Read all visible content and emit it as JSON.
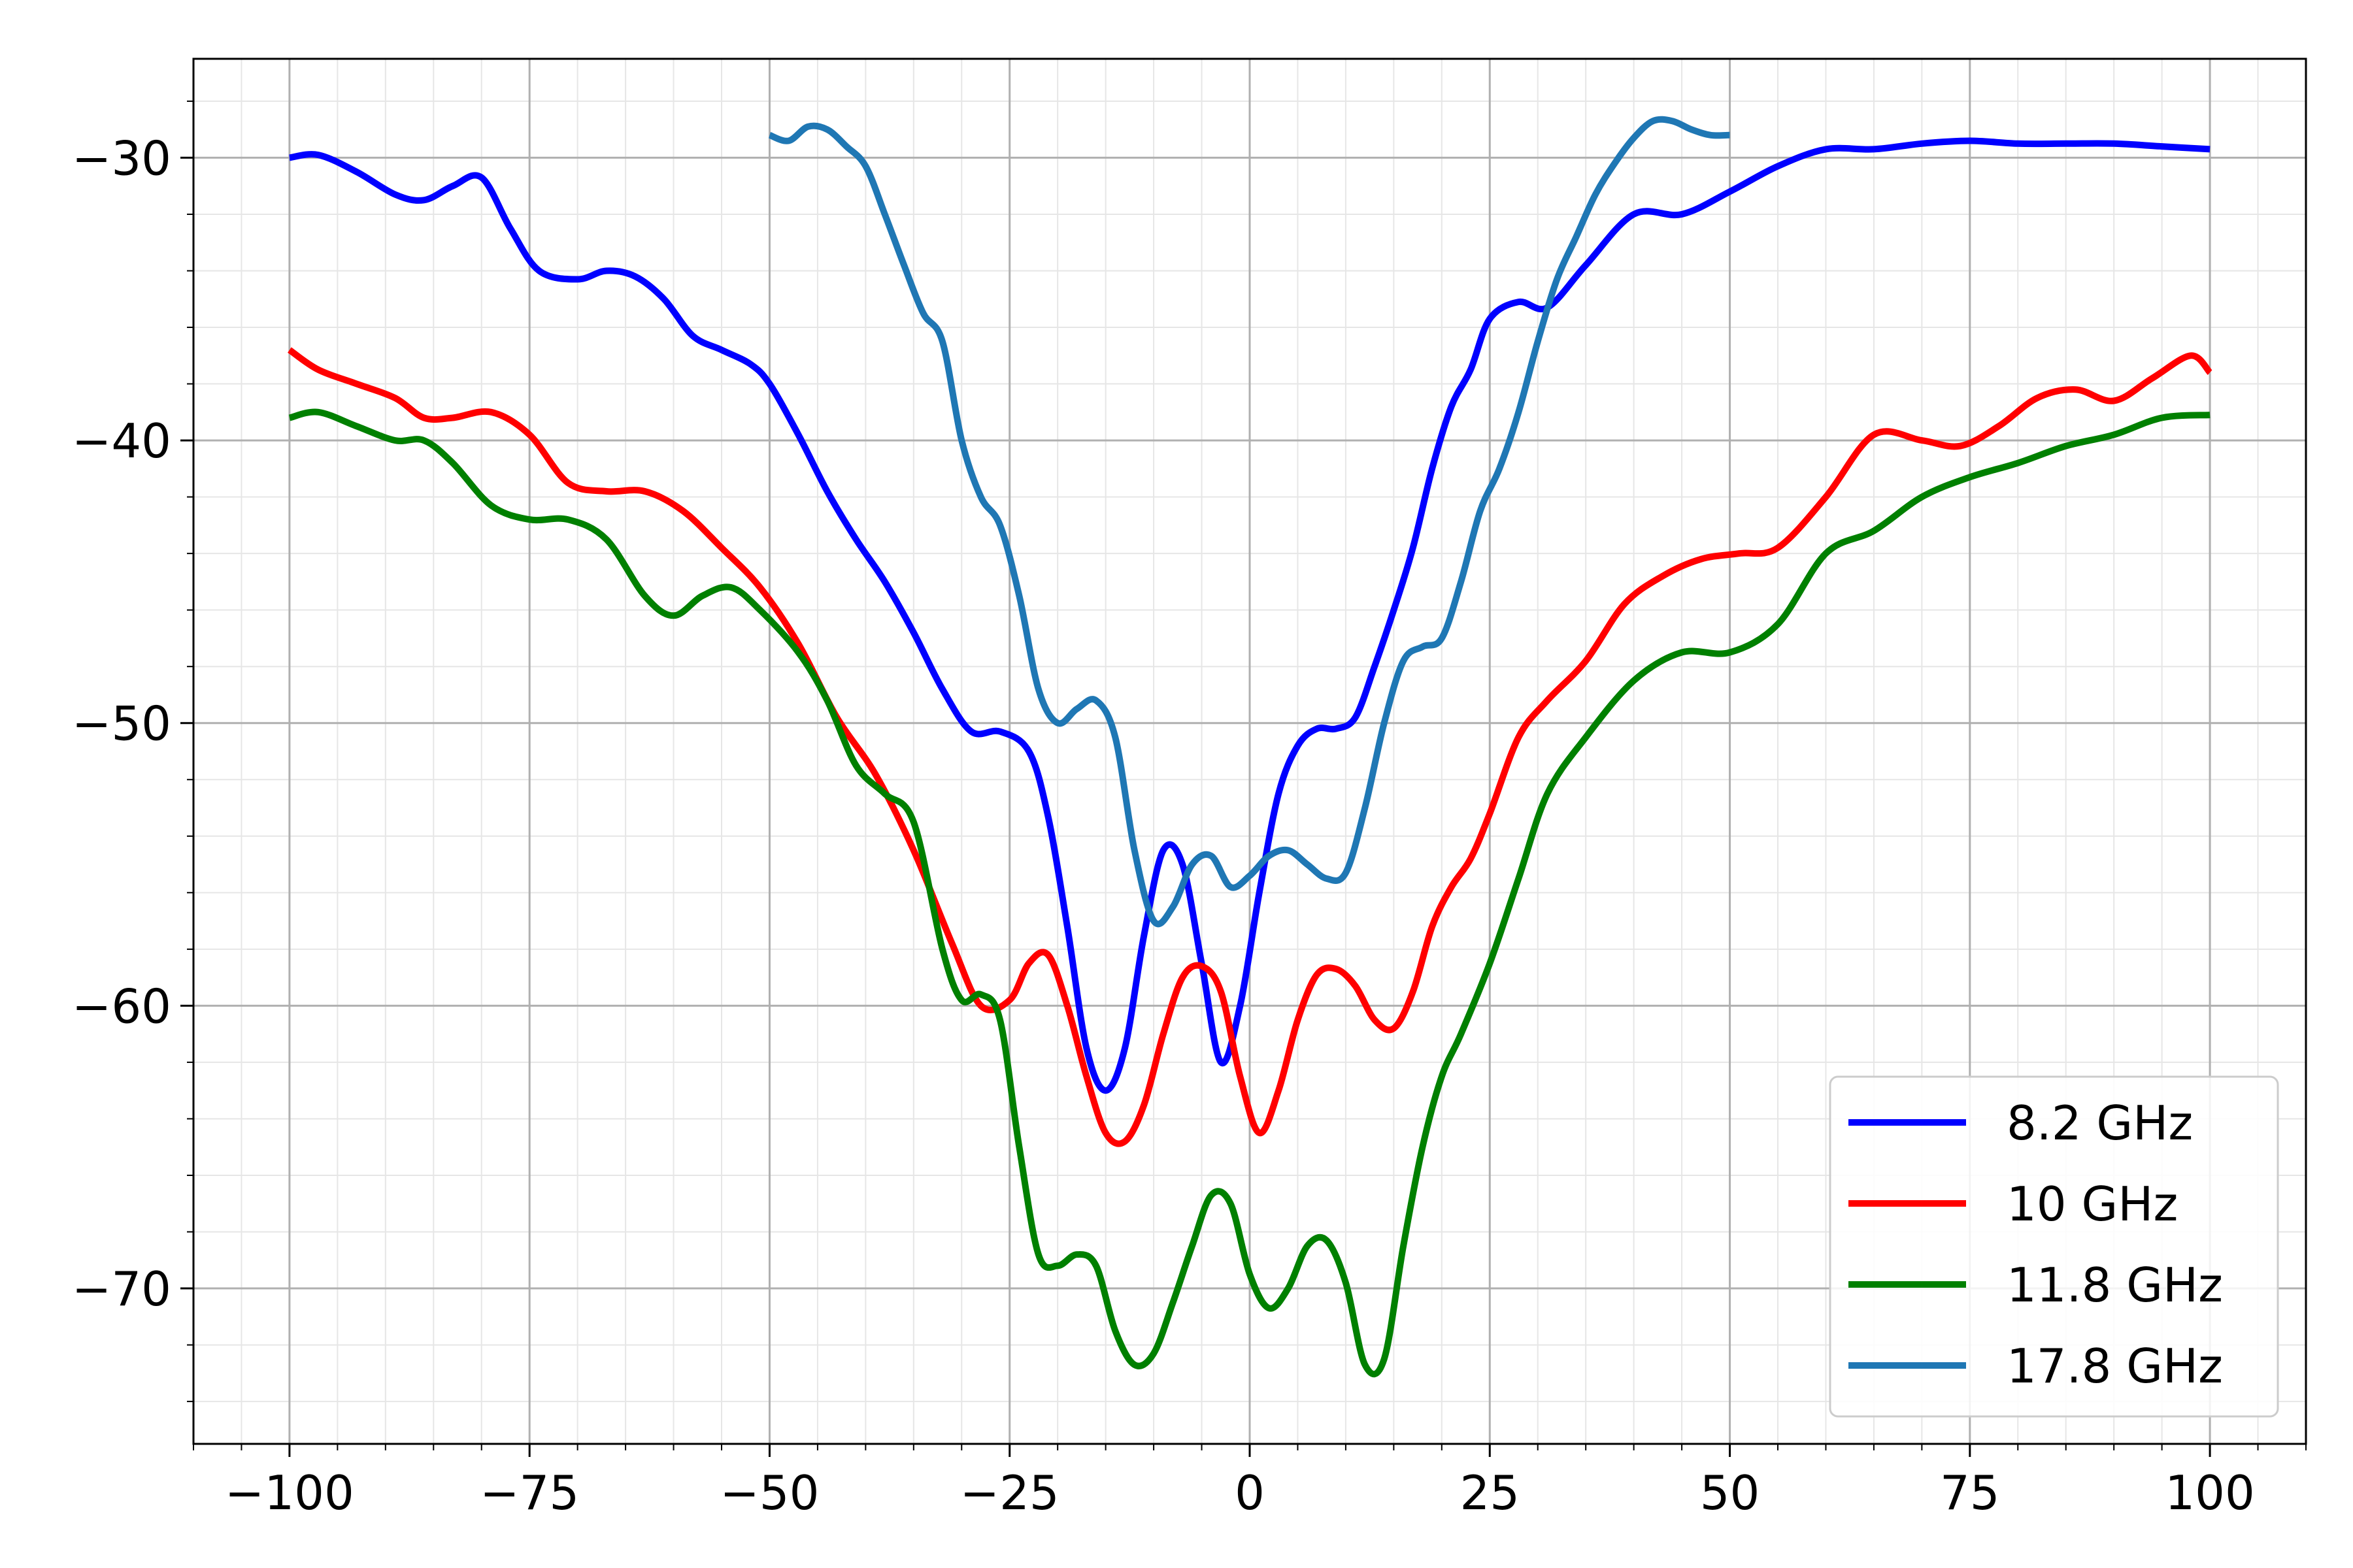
{
  "chart_data": {
    "type": "line",
    "title": "",
    "xlabel": "",
    "ylabel": "",
    "xlim": [
      -110,
      110
    ],
    "ylim": [
      -75.5,
      -26.5
    ],
    "x_ticks": [
      -100,
      -75,
      -50,
      -25,
      0,
      25,
      50,
      75,
      100
    ],
    "x_tick_labels": [
      "−100",
      "−75",
      "−50",
      "−25",
      "0",
      "25",
      "50",
      "75",
      "100"
    ],
    "y_ticks": [
      -30,
      -40,
      -50,
      -60,
      -70
    ],
    "y_tick_labels": [
      "−30",
      "−40",
      "−50",
      "−60",
      "−70"
    ],
    "grid": "major and minor",
    "legend_position": "lower-right",
    "series": [
      {
        "name": "8.2 GHz",
        "color": "#0000ff",
        "x": [
          -100,
          -97,
          -93,
          -89,
          -86,
          -83,
          -80,
          -77,
          -74,
          -70,
          -67,
          -64,
          -61,
          -58,
          -55,
          -52,
          -50,
          -47,
          -44,
          -41,
          -38,
          -35,
          -32,
          -29,
          -26,
          -23,
          -21,
          -19,
          -17,
          -15,
          -13,
          -11,
          -9,
          -7,
          -5,
          -3,
          -1,
          1,
          3,
          5,
          7,
          9,
          11,
          13,
          15,
          17,
          19,
          21,
          23,
          25,
          28,
          31,
          35,
          40,
          45,
          50,
          55,
          60,
          65,
          70,
          75,
          80,
          85,
          90,
          95,
          100
        ],
        "y": [
          -30,
          -29.9,
          -30.5,
          -31.3,
          -31.5,
          -31,
          -30.7,
          -32.5,
          -34,
          -34.3,
          -34,
          -34.2,
          -35,
          -36.3,
          -36.8,
          -37.3,
          -38,
          -39.8,
          -41.8,
          -43.5,
          -45,
          -46.8,
          -48.8,
          -50.3,
          -50.3,
          -51,
          -53.3,
          -57.2,
          -61.5,
          -63,
          -61.5,
          -57.5,
          -54.5,
          -55,
          -58.5,
          -62,
          -60,
          -56,
          -52.5,
          -50.8,
          -50.2,
          -50.2,
          -49.8,
          -48,
          -46,
          -43.8,
          -41,
          -38.8,
          -37.5,
          -35.7,
          -35.1,
          -35.3,
          -33.8,
          -32,
          -32,
          -31.2,
          -30.3,
          -29.7,
          -29.7,
          -29.5,
          -29.4,
          -29.5,
          -29.5,
          -29.5,
          -29.6,
          -29.7
        ]
      },
      {
        "name": "10 GHz",
        "color": "#ff0000",
        "x": [
          -100,
          -97,
          -93,
          -89,
          -86,
          -83,
          -79,
          -75,
          -71,
          -67,
          -63,
          -59,
          -55,
          -51,
          -47,
          -43,
          -39,
          -35,
          -31,
          -28,
          -25,
          -23,
          -21,
          -19,
          -17,
          -15,
          -13,
          -11,
          -9,
          -7,
          -5,
          -3,
          -1,
          1,
          3,
          5,
          7,
          9,
          11,
          13,
          15,
          17,
          19,
          21,
          23,
          25,
          28,
          31,
          35,
          39,
          43,
          47,
          51,
          55,
          60,
          65,
          70,
          74,
          78,
          82,
          86,
          90,
          94,
          98,
          100
        ],
        "y": [
          -36.8,
          -37.5,
          -38,
          -38.5,
          -39.2,
          -39.2,
          -39,
          -39.8,
          -41.5,
          -41.8,
          -41.8,
          -42.5,
          -43.8,
          -45.2,
          -47.2,
          -49.8,
          -51.8,
          -54.5,
          -57.8,
          -60,
          -59.8,
          -58.5,
          -58.2,
          -60,
          -62.5,
          -64.5,
          -64.8,
          -63.5,
          -61,
          -59,
          -58.6,
          -59.5,
          -62.5,
          -64.5,
          -63,
          -60.5,
          -58.9,
          -58.7,
          -59.3,
          -60.5,
          -60.8,
          -59.5,
          -57.2,
          -55.8,
          -54.8,
          -53.2,
          -50.5,
          -49.2,
          -47.8,
          -45.8,
          -44.8,
          -44.2,
          -44,
          -43.8,
          -42,
          -39.8,
          -40,
          -40.2,
          -39.5,
          -38.5,
          -38.2,
          -38.6,
          -37.8,
          -37,
          -37.6
        ]
      },
      {
        "name": "11.8 GHz",
        "color": "#008000",
        "x": [
          -100,
          -97,
          -93,
          -89,
          -86,
          -83,
          -79,
          -75,
          -71,
          -67,
          -63,
          -60,
          -57,
          -54,
          -51,
          -47,
          -44,
          -41,
          -38,
          -35,
          -32,
          -30,
          -28,
          -26,
          -24,
          -22,
          -20,
          -18,
          -16,
          -14,
          -12,
          -10,
          -8,
          -6,
          -4,
          -2,
          0,
          2,
          4,
          6,
          8,
          10,
          12,
          14,
          16,
          18,
          20,
          22,
          25,
          28,
          31,
          35,
          40,
          45,
          50,
          55,
          60,
          65,
          70,
          75,
          80,
          85,
          90,
          95,
          100
        ],
        "y": [
          -39.2,
          -39,
          -39.5,
          -40,
          -40,
          -40.8,
          -42.3,
          -42.8,
          -42.8,
          -43.5,
          -45.5,
          -46.2,
          -45.5,
          -45.2,
          -46,
          -47.5,
          -49.2,
          -51.5,
          -52.5,
          -53.5,
          -58,
          -59.8,
          -59.6,
          -60.5,
          -65,
          -68.8,
          -69.2,
          -68.8,
          -69.2,
          -71.5,
          -72.7,
          -72.3,
          -70.5,
          -68.5,
          -66.7,
          -67,
          -69.5,
          -70.7,
          -70,
          -68.5,
          -68.3,
          -69.8,
          -72.7,
          -72.5,
          -68.5,
          -65,
          -62.5,
          -61,
          -58.5,
          -55.5,
          -52.5,
          -50.5,
          -48.5,
          -47.5,
          -47.5,
          -46.5,
          -44,
          -43.2,
          -42,
          -41.3,
          -40.8,
          -40.2,
          -39.8,
          -39.2,
          -39.1
        ]
      },
      {
        "name": "17.8 GHz",
        "color": "#1f77b4",
        "x": [
          -50,
          -48,
          -46,
          -44,
          -42,
          -40,
          -38,
          -36,
          -34,
          -32,
          -30,
          -28,
          -26,
          -24,
          -22,
          -20,
          -18,
          -16,
          -14,
          -12,
          -10,
          -8,
          -6,
          -4,
          -2,
          0,
          2,
          4,
          6,
          8,
          10,
          12,
          14,
          16,
          18,
          20,
          22,
          24,
          26,
          28,
          30,
          32,
          34,
          36,
          38,
          40,
          42,
          44,
          46,
          48,
          50
        ],
        "y": [
          -29.2,
          -29.4,
          -28.9,
          -29,
          -29.6,
          -30.3,
          -32,
          -33.8,
          -35.5,
          -36.5,
          -40,
          -42,
          -43,
          -45.5,
          -48.8,
          -50,
          -49.5,
          -49.2,
          -50.5,
          -54.5,
          -57,
          -56.5,
          -55,
          -54.7,
          -55.8,
          -55.4,
          -54.7,
          -54.5,
          -55,
          -55.5,
          -55.3,
          -53,
          -50,
          -47.8,
          -47.3,
          -47,
          -45,
          -42.5,
          -41,
          -39,
          -36.5,
          -34.3,
          -32.8,
          -31.3,
          -30.2,
          -29.3,
          -28.7,
          -28.7,
          -29,
          -29.2,
          -29.2
        ]
      }
    ]
  }
}
